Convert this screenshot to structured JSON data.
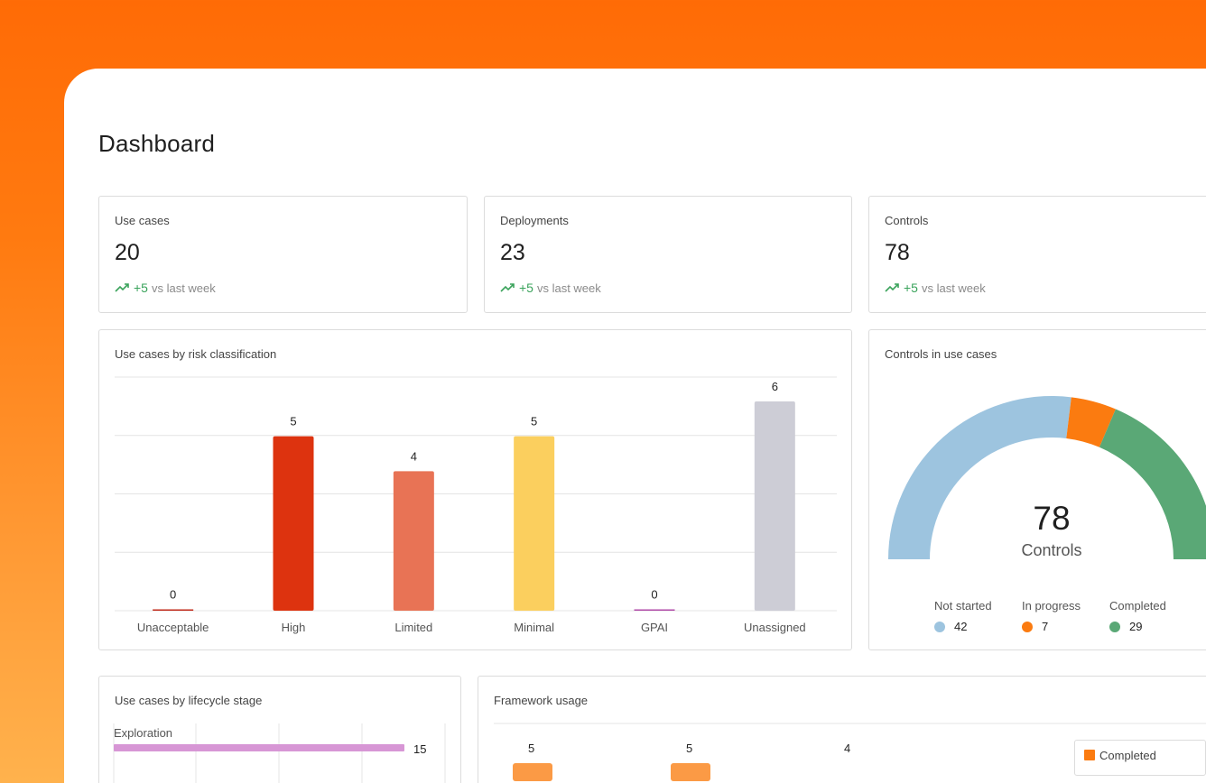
{
  "page": {
    "title": "Dashboard"
  },
  "stats": [
    {
      "label": "Use cases",
      "value": "20",
      "delta": "+5",
      "delta_text": "vs last week",
      "icon": "trend-up-icon"
    },
    {
      "label": "Deployments",
      "value": "23",
      "delta": "+5",
      "delta_text": "vs last week",
      "icon": "trend-up-icon"
    },
    {
      "label": "Controls",
      "value": "78",
      "delta": "+5",
      "delta_text": "vs last week",
      "icon": "trend-up-icon"
    }
  ],
  "risk_chart": {
    "title": "Use cases by risk classification",
    "chart_data": {
      "type": "bar",
      "categories": [
        "Unacceptable",
        "High",
        "Limited",
        "Minimal",
        "GPAI",
        "Unassigned"
      ],
      "values": [
        0,
        5,
        4,
        5,
        0,
        6
      ],
      "colors": [
        "#c0291a",
        "#dd330f",
        "#e87355",
        "#fbcf5e",
        "#b04aa8",
        "#cdcdd6"
      ],
      "ylim": [
        0,
        6
      ],
      "grid": true
    }
  },
  "controls_gauge": {
    "title": "Controls in use cases",
    "total": "78",
    "total_label": "Controls",
    "chart_data": {
      "type": "pie",
      "categories": [
        "Not started",
        "In progress",
        "Completed"
      ],
      "values": [
        42,
        7,
        29
      ],
      "colors": [
        "#9dc4df",
        "#fb7b10",
        "#5aa876"
      ]
    },
    "legend": [
      {
        "name": "Not started",
        "value": "42",
        "color": "#9dc4df"
      },
      {
        "name": "In progress",
        "value": "7",
        "color": "#fb7b10"
      },
      {
        "name": "Completed",
        "value": "29",
        "color": "#5aa876"
      }
    ]
  },
  "lifecycle": {
    "title": "Use cases by lifecycle stage",
    "chart_data": {
      "type": "bar",
      "categories": [
        "Exploration"
      ],
      "values": [
        15
      ],
      "color": "#d796d5"
    },
    "items": [
      {
        "label": "Exploration",
        "value": "15"
      }
    ]
  },
  "framework": {
    "title": "Framework usage",
    "chart_data": {
      "type": "bar",
      "values": [
        5,
        5,
        4
      ],
      "series": [
        {
          "name": "Completed",
          "color": "#fb7b10"
        }
      ]
    },
    "values": [
      "5",
      "5",
      "4"
    ],
    "legend_label": "Completed"
  }
}
